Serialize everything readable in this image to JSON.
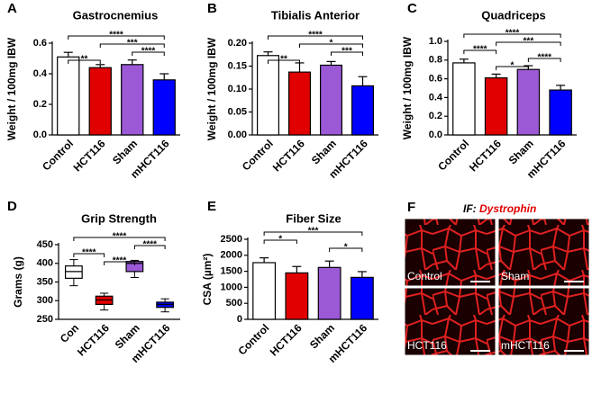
{
  "chart_data": [
    {
      "type": "bar",
      "panel": "A",
      "title": "Gastrocnemius",
      "y_label": "Weight / 100mg IBW",
      "categories": [
        "Control",
        "HCT116",
        "Sham",
        "mHCT116"
      ],
      "values": [
        0.51,
        0.44,
        0.46,
        0.36
      ],
      "errors": [
        0.03,
        0.02,
        0.03,
        0.04
      ],
      "colors": [
        "#ffffff",
        "#e00000",
        "#9b59d6",
        "#0000ff"
      ],
      "ylim": [
        0,
        0.6
      ],
      "yticks": [
        {
          "value": 0,
          "label": "0.0"
        },
        0.2,
        0.4,
        0.6
      ],
      "comparisons": [
        {
          "between": [
            "Control",
            "mHCT116"
          ],
          "label": "****"
        },
        {
          "between": [
            "HCT116",
            "mHCT116"
          ],
          "label": "***"
        },
        {
          "between": [
            "Sham",
            "mHCT116"
          ],
          "label": "****"
        },
        {
          "between": [
            "Control",
            "HCT116"
          ],
          "label": "**"
        }
      ]
    },
    {
      "type": "bar",
      "panel": "B",
      "title": "Tibialis Anterior",
      "y_label": "Weight / 100mg IBW",
      "categories": [
        "Control",
        "HCT116",
        "Sham",
        "mHCT116"
      ],
      "values": [
        0.173,
        0.137,
        0.152,
        0.107
      ],
      "errors": [
        0.008,
        0.02,
        0.008,
        0.02
      ],
      "colors": [
        "#ffffff",
        "#e00000",
        "#9b59d6",
        "#0000ff"
      ],
      "ylim": [
        0,
        0.2
      ],
      "yticks": [
        {
          "value": 0,
          "label": "0.00"
        },
        {
          "value": 0.05,
          "label": "0.05"
        },
        {
          "value": 0.1,
          "label": "0.10"
        },
        {
          "value": 0.15,
          "label": "0.15"
        },
        {
          "value": 0.2,
          "label": "0.20"
        }
      ],
      "comparisons": [
        {
          "between": [
            "Control",
            "mHCT116"
          ],
          "label": "****"
        },
        {
          "between": [
            "HCT116",
            "mHCT116"
          ],
          "label": "*"
        },
        {
          "between": [
            "Sham",
            "mHCT116"
          ],
          "label": "***"
        },
        {
          "between": [
            "Control",
            "HCT116"
          ],
          "label": "**"
        }
      ]
    },
    {
      "type": "bar",
      "panel": "C",
      "title": "Quadriceps",
      "y_label": "Weight / 100mg IBW",
      "categories": [
        "Control",
        "HCT116",
        "Sham",
        "mHCT116"
      ],
      "values": [
        0.77,
        0.61,
        0.7,
        0.48
      ],
      "errors": [
        0.04,
        0.04,
        0.04,
        0.05
      ],
      "colors": [
        "#ffffff",
        "#e00000",
        "#9b59d6",
        "#0000ff"
      ],
      "ylim": [
        0,
        1
      ],
      "yticks": [
        {
          "value": 0,
          "label": "0.0"
        },
        0.2,
        0.4,
        0.6,
        0.8,
        {
          "value": 1,
          "label": "1.0"
        }
      ],
      "comparisons": [
        {
          "between": [
            "Control",
            "mHCT116"
          ],
          "label": "****"
        },
        {
          "between": [
            "HCT116",
            "mHCT116"
          ],
          "label": "***"
        },
        {
          "between": [
            "Control",
            "HCT116"
          ],
          "label": "****"
        },
        {
          "between": [
            "Sham",
            "mHCT116"
          ],
          "label": "****"
        },
        {
          "between": [
            "HCT116",
            "Sham"
          ],
          "label": "*"
        }
      ]
    },
    {
      "type": "box",
      "panel": "D",
      "title": "Grip Strength",
      "y_label": "Grams (g)",
      "categories": [
        "Con",
        "HCT116",
        "Sham",
        "mHCT116"
      ],
      "boxes": [
        {
          "min": 340,
          "q1": 360,
          "median": 378,
          "q3": 393,
          "max": 410
        },
        {
          "min": 275,
          "q1": 290,
          "median": 302,
          "q3": 312,
          "max": 320
        },
        {
          "min": 362,
          "q1": 378,
          "median": 400,
          "q3": 405,
          "max": 408
        },
        {
          "min": 270,
          "q1": 282,
          "median": 290,
          "q3": 296,
          "max": 305
        }
      ],
      "colors": [
        "#ffffff",
        "#e00000",
        "#9b59d6",
        "#0000ff"
      ],
      "ylim": [
        250,
        450
      ],
      "yticks": [
        250,
        300,
        350,
        400,
        450
      ],
      "comparisons": [
        {
          "between": [
            "Con",
            "mHCT116"
          ],
          "label": "****"
        },
        {
          "between": [
            "Sham",
            "mHCT116"
          ],
          "label": "****"
        },
        {
          "between": [
            "Con",
            "HCT116"
          ],
          "label": "****"
        },
        {
          "between": [
            "HCT116",
            "Sham"
          ],
          "label": "****"
        }
      ]
    },
    {
      "type": "bar",
      "panel": "E",
      "title": "Fiber Size",
      "y_label": "CSA (µm²)",
      "categories": [
        "Control",
        "HCT116",
        "Sham",
        "mHCT116"
      ],
      "values": [
        1770,
        1450,
        1620,
        1310
      ],
      "errors": [
        150,
        200,
        200,
        180
      ],
      "colors": [
        "#ffffff",
        "#e00000",
        "#9b59d6",
        "#0000ff"
      ],
      "ylim": [
        0,
        2500
      ],
      "yticks": [
        0,
        500,
        1000,
        1500,
        2000,
        2500
      ],
      "comparisons": [
        {
          "between": [
            "Control",
            "mHCT116"
          ],
          "label": "***"
        },
        {
          "between": [
            "Control",
            "HCT116"
          ],
          "label": "*"
        },
        {
          "between": [
            "Sham",
            "mHCT116"
          ],
          "label": "*"
        }
      ]
    }
  ],
  "image_panel": {
    "panel": "F",
    "title_prefix": "IF:",
    "title_stain": "Dystrophin",
    "tiles": [
      "Control",
      "Sham",
      "HCT116",
      "mHCT116"
    ]
  }
}
